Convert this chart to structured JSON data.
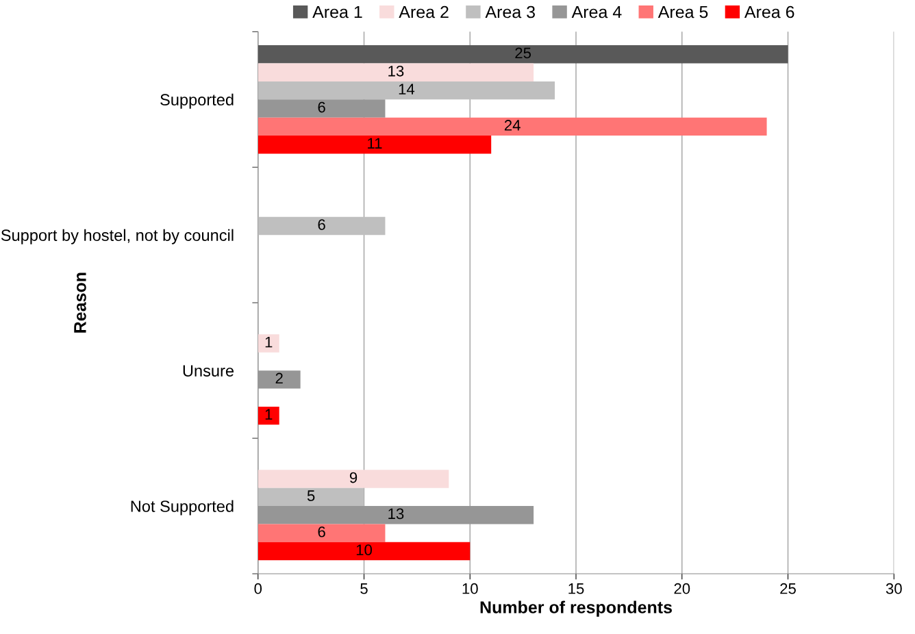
{
  "chart_data": {
    "type": "bar",
    "orientation": "horizontal",
    "xlabel": "Number of respondents",
    "ylabel": "Reason",
    "categories": [
      "Supported",
      "Support by hostel, not by council",
      "Unsure",
      "Not Supported"
    ],
    "series": [
      {
        "name": "Area 1",
        "color": "#595959",
        "values": [
          25,
          null,
          null,
          null
        ]
      },
      {
        "name": "Area 2",
        "color": "#f9dcdc",
        "values": [
          13,
          null,
          1,
          9
        ]
      },
      {
        "name": "Area 3",
        "color": "#bfbfbf",
        "values": [
          14,
          6,
          null,
          5
        ]
      },
      {
        "name": "Area 4",
        "color": "#969696",
        "values": [
          6,
          null,
          2,
          13
        ]
      },
      {
        "name": "Area 5",
        "color": "#ff7575",
        "values": [
          24,
          null,
          null,
          6
        ]
      },
      {
        "name": "Area 6",
        "color": "#ff0000",
        "values": [
          11,
          null,
          1,
          10
        ]
      }
    ],
    "xlim": [
      0,
      30
    ],
    "xticks": [
      0,
      5,
      10,
      15,
      20,
      25,
      30
    ],
    "grid": "x",
    "legend": "top",
    "data_labels": true
  }
}
